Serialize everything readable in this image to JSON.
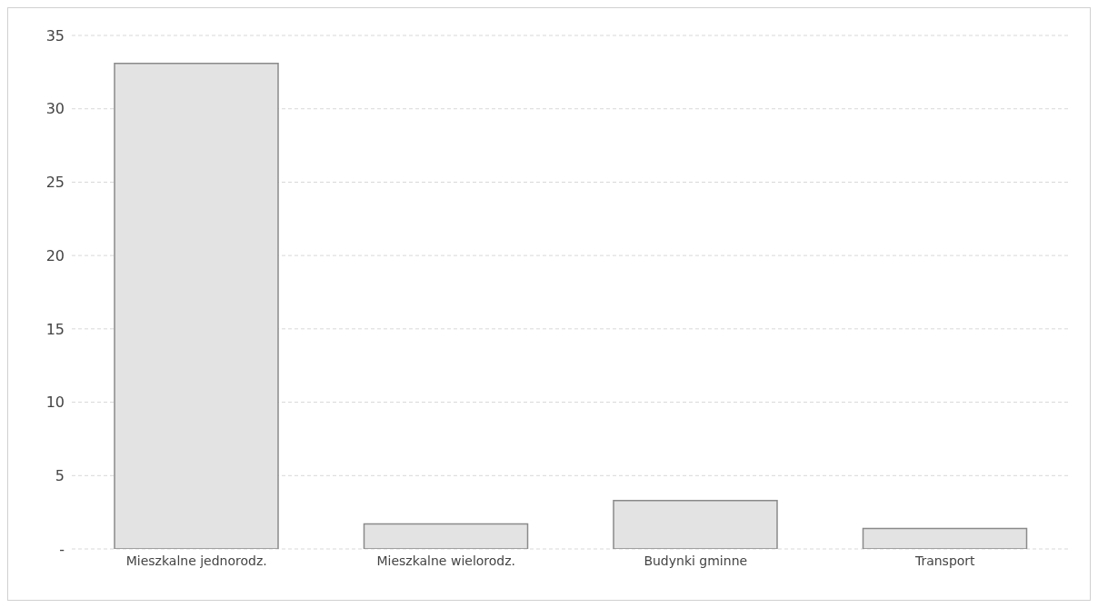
{
  "chart_data": {
    "type": "bar",
    "categories": [
      "Mieszkalne jednorodz.",
      "Mieszkalne wielorodz.",
      "Budynki gminne",
      "Transport"
    ],
    "values": [
      33.1,
      1.7,
      3.3,
      1.4
    ],
    "color": "#e3e3e3",
    "ylim": [
      0,
      35
    ],
    "yticks": [
      {
        "value": 0,
        "label": "-"
      },
      5,
      10,
      15,
      20,
      25,
      30,
      35
    ],
    "grid": "y"
  }
}
